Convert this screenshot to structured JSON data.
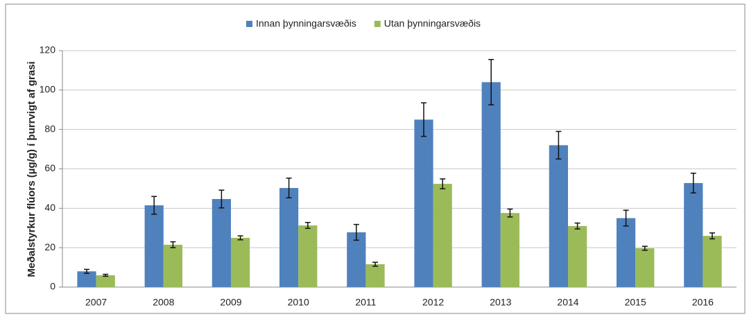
{
  "chart_data": {
    "type": "bar",
    "ylabel": "Meðalstyrkur flúors (µg/g) í þurrvigt af grasi",
    "categories": [
      "2007",
      "2008",
      "2009",
      "2010",
      "2011",
      "2012",
      "2013",
      "2014",
      "2015",
      "2016"
    ],
    "series": [
      {
        "name": "Innan þynningarsvæðis",
        "color": "#4f81bd",
        "values": [
          8,
          41.5,
          44.7,
          50.3,
          27.8,
          85,
          104,
          72,
          35,
          52.8
        ],
        "errors": [
          1,
          4.5,
          4.5,
          5,
          4,
          8.5,
          11.5,
          7,
          4,
          5
        ]
      },
      {
        "name": "Utan þynningarsvæðis",
        "color": "#9bbb59",
        "values": [
          6,
          21.5,
          25,
          31.3,
          11.6,
          52.4,
          37.6,
          31,
          19.7,
          26
        ],
        "errors": [
          0.5,
          1.5,
          1,
          1.5,
          1,
          2.5,
          2,
          1.5,
          1,
          1.5
        ]
      }
    ],
    "ylim": [
      0,
      120
    ],
    "yticks": [
      0,
      20,
      40,
      60,
      80,
      100,
      120
    ],
    "grid": true,
    "legend": "top"
  }
}
